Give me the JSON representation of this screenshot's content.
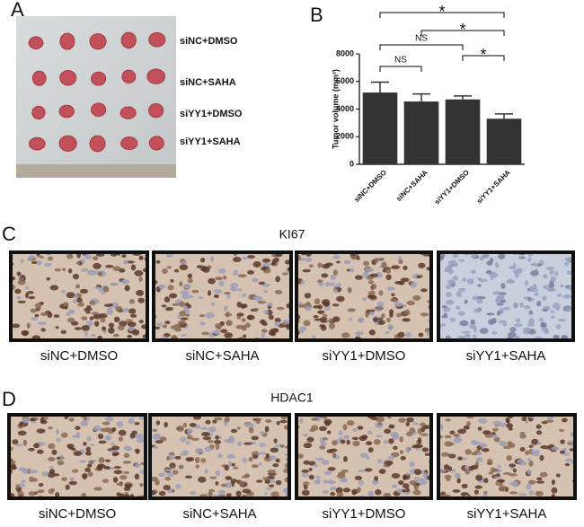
{
  "panel_a": {
    "letter": "A",
    "labels": [
      "siNC+DMSO",
      "siNC+SAHA",
      "siYY1+DMSO",
      "siYY1+SAHA"
    ]
  },
  "panel_b": {
    "letter": "B"
  },
  "chart_data": {
    "type": "bar",
    "ylabel": "Tumor volume (mm³)",
    "categories": [
      "siNC+DMSO",
      "siNC+SAHA",
      "siYY1+DMSO",
      "siYY1+SAHA"
    ],
    "series": [
      {
        "values": [
          5200,
          4550,
          4700,
          3300
        ],
        "errors": [
          750,
          550,
          250,
          350
        ],
        "color": "#333333"
      }
    ],
    "ylim": [
      0,
      8000
    ],
    "yticks": [
      0,
      2000,
      4000,
      6000,
      8000
    ],
    "comparisons": [
      {
        "label": "*",
        "pair": [
          0,
          3
        ]
      },
      {
        "label": "*",
        "pair": [
          1,
          3
        ]
      },
      {
        "label": "NS",
        "pair": [
          0,
          2
        ]
      },
      {
        "label": "*",
        "pair": [
          2,
          3
        ]
      },
      {
        "label": "NS",
        "pair": [
          0,
          1
        ]
      }
    ]
  },
  "panel_c": {
    "letter": "C",
    "title": "KI67",
    "labels": [
      "siNC+DMSO",
      "siNC+SAHA",
      "siYY1+DMSO",
      "siYY1+SAHA"
    ]
  },
  "panel_d": {
    "letter": "D",
    "title": "HDAC1",
    "labels": [
      "siNC+DMSO",
      "siNC+SAHA",
      "siYY1+DMSO",
      "siYY1+SAHA"
    ]
  }
}
